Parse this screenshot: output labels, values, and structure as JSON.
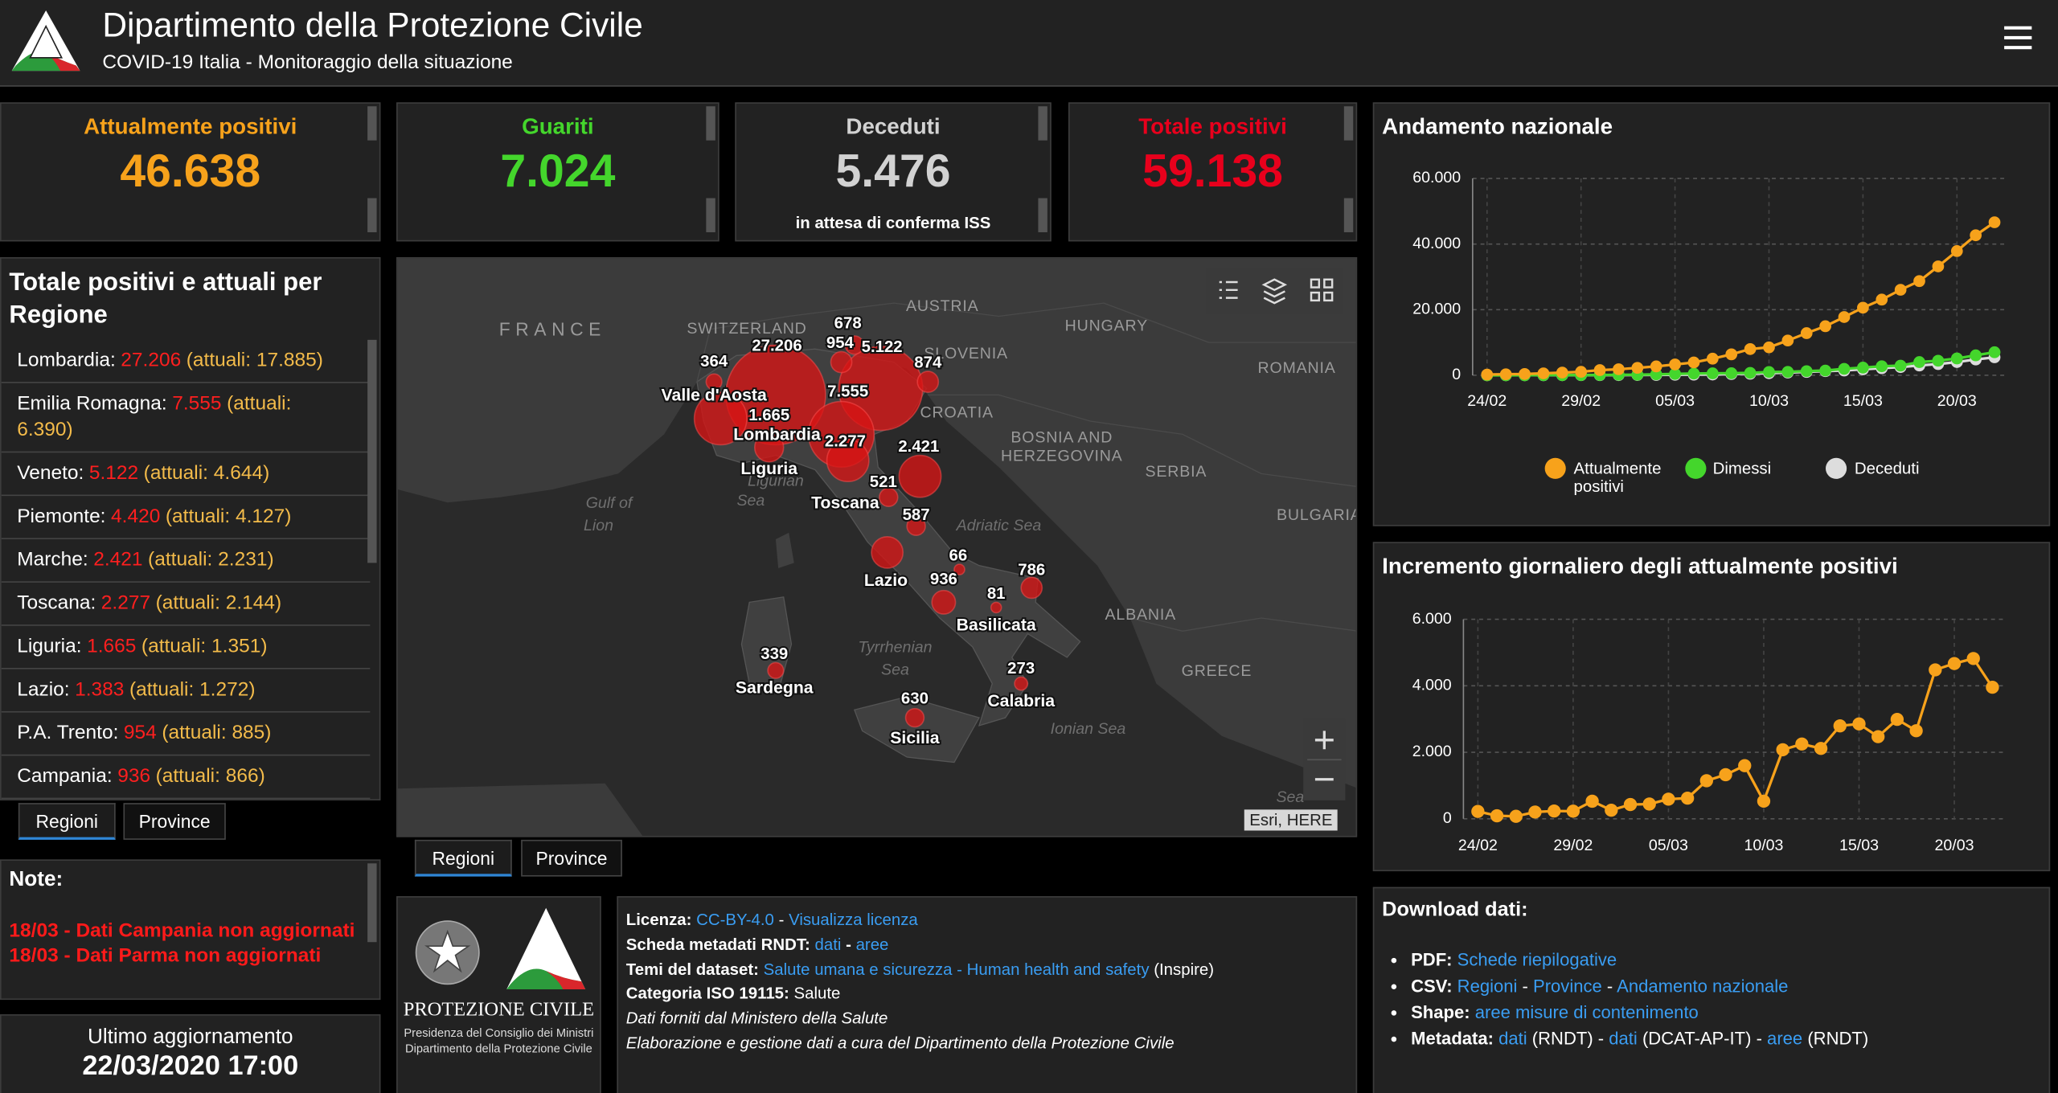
{
  "header": {
    "title": "Dipartimento della Protezione Civile",
    "subtitle": "COVID-19 Italia - Monitoraggio della situazione"
  },
  "counters": [
    {
      "label": "Attualmente positivi",
      "value": "46.638",
      "color": "#f7a21b"
    },
    {
      "label": "Guariti",
      "value": "7.024",
      "color": "#44d62c"
    },
    {
      "label": "Deceduti",
      "value": "5.476",
      "color": "#d2d2d2",
      "note": "in attesa di conferma ISS"
    },
    {
      "label": "Totale positivi",
      "value": "59.138",
      "color": "#e8001c"
    }
  ],
  "regions_panel": {
    "title": "Totale positivi e attuali per Regione",
    "items": [
      {
        "name": "Lombardia:",
        "total": "27.206",
        "current": "(attuali: 17.885)"
      },
      {
        "name": "Emilia Romagna:",
        "total": "7.555",
        "current": "(attuali: 6.390)"
      },
      {
        "name": "Veneto:",
        "total": "5.122",
        "current": "(attuali: 4.644)"
      },
      {
        "name": "Piemonte:",
        "total": "4.420",
        "current": "(attuali: 4.127)"
      },
      {
        "name": "Marche:",
        "total": "2.421",
        "current": "(attuali: 2.231)"
      },
      {
        "name": "Toscana:",
        "total": "2.277",
        "current": "(attuali: 2.144)"
      },
      {
        "name": "Liguria:",
        "total": "1.665",
        "current": "(attuali: 1.351)"
      },
      {
        "name": "Lazio:",
        "total": "1.383",
        "current": "(attuali: 1.272)"
      },
      {
        "name": "P.A. Trento:",
        "total": "954",
        "current": "(attuali: 885)"
      },
      {
        "name": "Campania:",
        "total": "936",
        "current": "(attuali: 866)"
      }
    ],
    "tabs": [
      "Regioni",
      "Province"
    ]
  },
  "notes": {
    "title": "Note:",
    "items": [
      "18/03 - Dati Campania non aggiornati",
      "18/03 - Dati Parma non aggiornati"
    ]
  },
  "last_update": {
    "label": "Ultimo aggiornamento",
    "value": "22/03/2020 17:00"
  },
  "map": {
    "tabs": [
      "Regioni",
      "Province"
    ],
    "attribution": "Esri, HERE",
    "country_labels": [
      "FRANCE",
      "SWITZERLAND",
      "AUSTRIA",
      "HUNGARY",
      "SLOVENIA",
      "ROMANIA",
      "CROATIA",
      "BOSNIA AND",
      "HERZEGOVINA",
      "SERBIA",
      "BULGARIA",
      "ALBANIA",
      "GREECE"
    ],
    "sea_labels": [
      "Gulf of",
      "Lion",
      "Ligurian",
      "Sea",
      "Adriatic Sea",
      "Tyrrhenian",
      "Sea",
      "Ionian Sea",
      "Sea"
    ],
    "bubble_labels": [
      "678",
      "954",
      "5.122",
      "874",
      "364",
      "27.206",
      "7.555",
      "1.665",
      "2.277",
      "2.421",
      "521",
      "587",
      "66",
      "786",
      "936",
      "81",
      "339",
      "273",
      "630"
    ],
    "region_labels": [
      "Valle d'Aosta",
      "Lombardia",
      "Liguria",
      "Toscana",
      "Lazio",
      "Basilicata",
      "Sardegna",
      "Calabria",
      "Sicilia"
    ]
  },
  "logo_block": {
    "name": "PROTEZIONE CIVILE",
    "line1": "Presidenza del Consiglio dei Ministri",
    "line2": "Dipartimento della Protezione Civile"
  },
  "info": {
    "lines": [
      [
        {
          "t": "Licenza: ",
          "s": "b"
        },
        {
          "t": "CC-BY-4.0",
          "s": "link"
        },
        {
          "t": " - ",
          "s": "plain"
        },
        {
          "t": "Visualizza licenza",
          "s": "link"
        }
      ],
      [
        {
          "t": "Scheda metadati RNDT: ",
          "s": "b"
        },
        {
          "t": "dati",
          "s": "link"
        },
        {
          "t": " - ",
          "s": "b"
        },
        {
          "t": "aree",
          "s": "link"
        }
      ],
      [
        {
          "t": "Temi del dataset: ",
          "s": "b"
        },
        {
          "t": "Salute umana e sicurezza - Human health and safety",
          "s": "link"
        },
        {
          "t": " (Inspire)",
          "s": "plain"
        }
      ],
      [
        {
          "t": "Categoria ISO 19115: ",
          "s": "b"
        },
        {
          "t": "Salute",
          "s": "plain"
        }
      ],
      [
        {
          "t": "Dati forniti dal Ministero della Salute",
          "s": "i"
        }
      ],
      [
        {
          "t": "Elaborazione e gestione dati a cura del Dipartimento della Protezione Civile",
          "s": "i"
        }
      ]
    ]
  },
  "downloads": {
    "title": "Download dati:",
    "items": [
      [
        {
          "t": "PDF: ",
          "s": "b"
        },
        {
          "t": "Schede riepilogative",
          "s": "link"
        }
      ],
      [
        {
          "t": "CSV: ",
          "s": "b"
        },
        {
          "t": "Regioni",
          "s": "link"
        },
        {
          "t": " - ",
          "s": "plain"
        },
        {
          "t": "Province",
          "s": "link"
        },
        {
          "t": " - ",
          "s": "plain"
        },
        {
          "t": "Andamento nazionale",
          "s": "link"
        }
      ],
      [
        {
          "t": "Shape: ",
          "s": "b"
        },
        {
          "t": "aree misure di contenimento",
          "s": "link"
        }
      ],
      [
        {
          "t": "Metadata: ",
          "s": "b"
        },
        {
          "t": "dati",
          "s": "link"
        },
        {
          "t": " (RNDT) - ",
          "s": "plain"
        },
        {
          "t": "dati",
          "s": "link"
        },
        {
          "t": " (DCAT-AP-IT) - ",
          "s": "plain"
        },
        {
          "t": "aree",
          "s": "link"
        },
        {
          "t": " (RNDT)",
          "s": "plain"
        }
      ]
    ]
  },
  "chart_data": [
    {
      "type": "line",
      "title": "Andamento nazionale",
      "categories": [
        "24/02",
        null,
        null,
        null,
        null,
        "29/02",
        null,
        null,
        null,
        null,
        "05/03",
        null,
        null,
        null,
        null,
        "10/03",
        null,
        null,
        null,
        null,
        "15/03",
        null,
        null,
        null,
        null,
        "20/03",
        null,
        null
      ],
      "ylim": [
        0,
        60000
      ],
      "yticks": [
        0,
        {
          "value": 20000,
          "label": "20.000"
        },
        {
          "value": 40000,
          "label": "40.000"
        },
        {
          "value": 60000,
          "label": "60.000"
        }
      ],
      "grid": true,
      "series": [
        {
          "name": "Attualmente positivi",
          "color": "#f7a21b",
          "values": [
            221,
            311,
            385,
            588,
            821,
            1049,
            1577,
            1835,
            2263,
            2706,
            3296,
            3916,
            5061,
            6387,
            7985,
            8514,
            10590,
            12839,
            14955,
            17750,
            20603,
            23073,
            26062,
            28710,
            33190,
            37860,
            42681,
            46638
          ]
        },
        {
          "name": "Dimessi",
          "color": "#44d62c",
          "values": [
            1,
            1,
            3,
            45,
            46,
            50,
            83,
            149,
            160,
            276,
            414,
            523,
            589,
            622,
            724,
            1004,
            1045,
            1258,
            1439,
            1966,
            2335,
            2749,
            2941,
            4025,
            4440,
            5129,
            6072,
            7024
          ]
        },
        {
          "name": "Deceduti",
          "color": "#dddddd",
          "values": [
            7,
            10,
            12,
            17,
            21,
            29,
            34,
            52,
            79,
            107,
            148,
            197,
            233,
            366,
            463,
            631,
            827,
            1016,
            1266,
            1441,
            1809,
            2158,
            2503,
            2978,
            3405,
            4032,
            4825,
            5476
          ]
        }
      ]
    },
    {
      "type": "line",
      "title": "Incremento giornaliero degli attualmente positivi",
      "categories": [
        "24/02",
        null,
        null,
        null,
        null,
        "29/02",
        null,
        null,
        null,
        null,
        "05/03",
        null,
        null,
        null,
        null,
        "10/03",
        null,
        null,
        null,
        null,
        "15/03",
        null,
        null,
        null,
        null,
        "20/03",
        null,
        null
      ],
      "ylim": [
        0,
        6000
      ],
      "yticks": [
        0,
        {
          "value": 2000,
          "label": "2.000"
        },
        {
          "value": 4000,
          "label": "4.000"
        },
        {
          "value": 6000,
          "label": "6.000"
        }
      ],
      "grid": true,
      "series": [
        {
          "color": "#f7a21b",
          "values": [
            221,
            90,
            74,
            203,
            233,
            228,
            528,
            258,
            428,
            443,
            590,
            620,
            1145,
            1326,
            1598,
            529,
            2076,
            2249,
            2116,
            2795,
            2853,
            2470,
            2989,
            2648,
            4480,
            4670,
            4821,
            3957
          ]
        }
      ]
    }
  ]
}
